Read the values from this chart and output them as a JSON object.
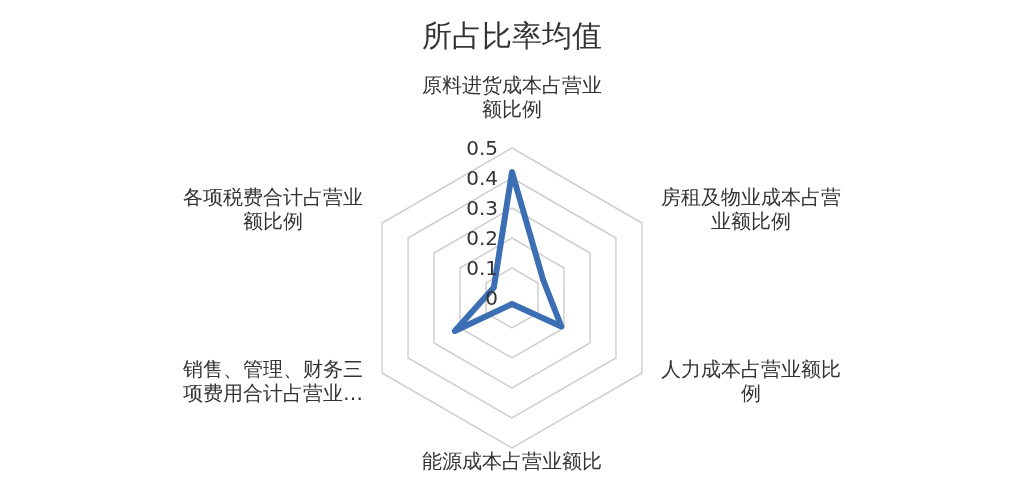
{
  "chart_data": {
    "type": "radar",
    "title": "所占比率均值",
    "categories": [
      "原料进货成本占营业额比例",
      "房租及物业成本占营业额比例",
      "人力成本占营业额比例",
      "能源成本占营业额比",
      "销售、管理、财务三项费用合计占营业…",
      "各项税费合计占营业额比例"
    ],
    "series": [
      {
        "color": "#3c6eb4",
        "values": [
          0.42,
          0.12,
          0.19,
          0.02,
          0.22,
          0.07
        ]
      }
    ],
    "ylim": [
      0,
      0.5
    ],
    "yticks": [
      0,
      0.1,
      0.2,
      0.3,
      0.4,
      0.5
    ],
    "grid": true
  }
}
